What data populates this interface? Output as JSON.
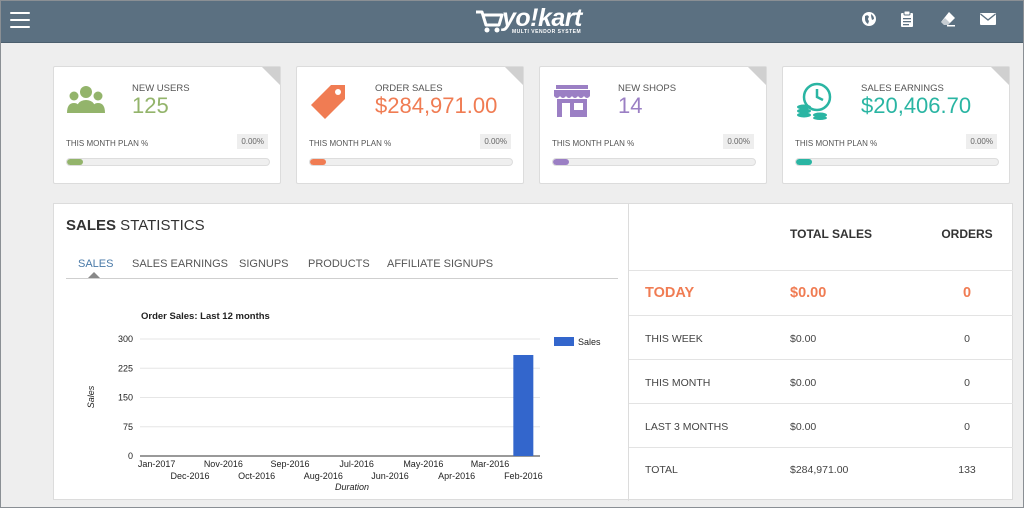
{
  "header": {
    "logo_text": "yo!kart",
    "logo_tagline": "MULTI VENDOR SYSTEM",
    "icons": [
      "globe-icon",
      "clipboard-icon",
      "eraser-icon",
      "mail-icon"
    ],
    "bar_color": "#5b7081"
  },
  "cards": [
    {
      "label": "NEW USERS",
      "value": "125",
      "plan_label": "THIS MONTH PLAN %",
      "plan_pct": "0.00%",
      "progress": 0.0,
      "color": "#93b46b",
      "icon": "users-icon"
    },
    {
      "label": "ORDER SALES",
      "value": "$284,971.00",
      "plan_label": "THIS MONTH PLAN %",
      "plan_pct": "0.00%",
      "progress": 0.0,
      "color": "#f07c53",
      "icon": "price-tag-icon"
    },
    {
      "label": "NEW SHOPS",
      "value": "14",
      "plan_label": "THIS MONTH PLAN %",
      "plan_pct": "0.00%",
      "progress": 0.0,
      "color": "#9b7fc4",
      "icon": "shop-icon"
    },
    {
      "label": "SALES EARNINGS",
      "value": "$20,406.70",
      "plan_label": "THIS MONTH PLAN %",
      "plan_pct": "0.00%",
      "progress": 0.0,
      "color": "#2ab5a3",
      "icon": "earnings-clock-icon"
    }
  ],
  "stats": {
    "title_bold": "SALES",
    "title_rest": " STATISTICS",
    "tabs": [
      "SALES",
      "SALES EARNINGS",
      "SIGNUPS",
      "PRODUCTS",
      "AFFILIATE SIGNUPS"
    ],
    "active_tab": "SALES"
  },
  "chart_data": {
    "type": "bar",
    "title": "Order Sales: Last 12 months",
    "xlabel": "Duration",
    "ylabel": "Sales",
    "categories": [
      "Jan-2017",
      "Dec-2016",
      "Nov-2016",
      "Oct-2016",
      "Sep-2016",
      "Aug-2016",
      "Jul-2016",
      "Jun-2016",
      "May-2016",
      "Apr-2016",
      "Mar-2016",
      "Feb-2016"
    ],
    "series": [
      {
        "name": "Sales",
        "values": [
          0,
          0,
          0,
          0,
          0,
          0,
          0,
          0,
          0,
          0,
          0,
          259
        ],
        "color": "#3366cc"
      }
    ],
    "yticks": [
      "0",
      "75",
      "150",
      "225",
      "300"
    ],
    "ylim": [
      0,
      300
    ],
    "grid": true,
    "legend": "right"
  },
  "sales_table": {
    "headers": [
      "",
      "TOTAL SALES",
      "ORDERS"
    ],
    "rows": [
      {
        "period": "TODAY",
        "total": "$0.00",
        "orders": "0"
      },
      {
        "period": "THIS WEEK",
        "total": "$0.00",
        "orders": "0"
      },
      {
        "period": "THIS MONTH",
        "total": "$0.00",
        "orders": "0"
      },
      {
        "period": "LAST 3 MONTHS",
        "total": "$0.00",
        "orders": "0"
      },
      {
        "period": "TOTAL",
        "total": "$284,971.00",
        "orders": "133"
      }
    ]
  }
}
